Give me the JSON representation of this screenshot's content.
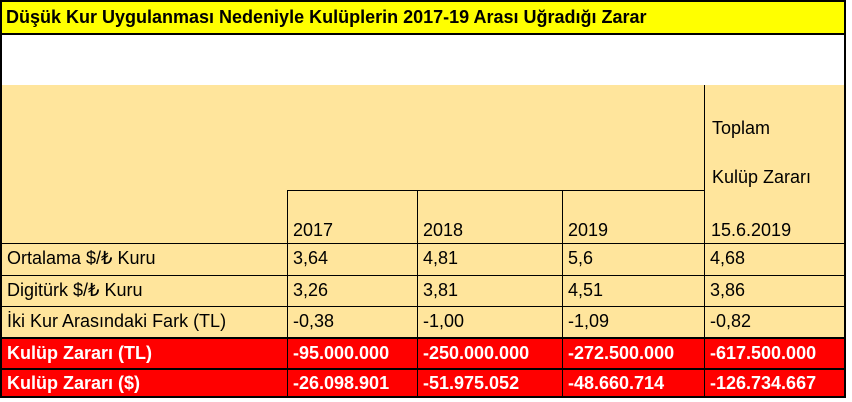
{
  "title": "Düşük Kur Uygulanması Nedeniyle Kulüplerin 2017-19 Arası Uğradığı Zarar",
  "header": {
    "years": [
      "2017",
      "2018",
      "2019",
      "15.6.2019"
    ],
    "total_line1": "Toplam",
    "total_line2": "Kulüp Zararı"
  },
  "rows": [
    {
      "label": "Ortalama $/₺ Kuru",
      "values": [
        "3,64",
        "4,81",
        "5,6",
        "4,68"
      ],
      "style": "tan"
    },
    {
      "label": "Digitürk $/₺ Kuru",
      "values": [
        "3,26",
        "3,81",
        "4,51",
        "3,86"
      ],
      "style": "tan"
    },
    {
      "label": "İki Kur Arasındaki Fark (TL)",
      "values": [
        "-0,38",
        "-1,00",
        "-1,09",
        "-0,82"
      ],
      "style": "tan"
    },
    {
      "label": "Kulüp Zararı (TL)",
      "values": [
        "-95.000.000",
        "-250.000.000",
        "-272.500.000",
        "-617.500.000"
      ],
      "style": "red"
    },
    {
      "label": "Kulüp Zararı ($)",
      "values": [
        "-26.098.901",
        "-51.975.052",
        "-48.660.714",
        "-126.734.667"
      ],
      "style": "red"
    }
  ],
  "colors": {
    "title_bg": "#ffff00",
    "tan_bg": "#ffe59c",
    "red_bg": "#ff0000"
  }
}
